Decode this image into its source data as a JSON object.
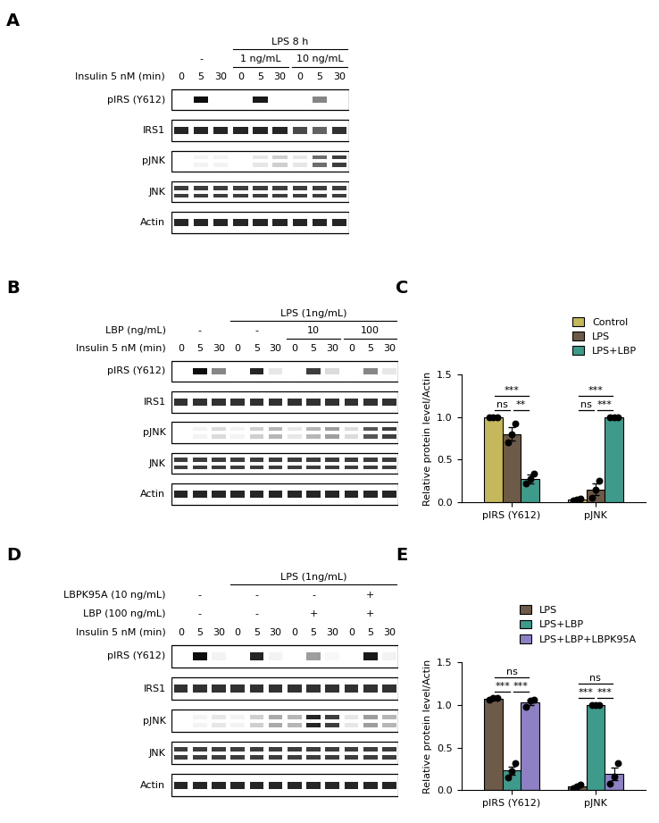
{
  "chart_data": [
    {
      "type": "bar",
      "label": "C",
      "categories": [
        "pIRS (Y612)",
        "pJNK"
      ],
      "y_label": "Relative protein level/Actin",
      "ylim": [
        0.0,
        1.5
      ],
      "yticks": [
        0.0,
        0.5,
        1.0,
        1.5
      ],
      "legend": "upper right",
      "series": [
        {
          "name": "Control",
          "color": "#c4b75c",
          "values": [
            1.0,
            0.03
          ],
          "errors": [
            0.0,
            0.01
          ],
          "points": [
            [
              1.0,
              1.0,
              1.0
            ],
            [
              0.02,
              0.03,
              0.04
            ]
          ]
        },
        {
          "name": "LPS",
          "color": "#6e5a48",
          "values": [
            0.8,
            0.15
          ],
          "errors": [
            0.08,
            0.07
          ],
          "points": [
            [
              0.7,
              0.8,
              0.92
            ],
            [
              0.05,
              0.15,
              0.25
            ]
          ]
        },
        {
          "name": "LPS+LBP",
          "color": "#3e9b8c",
          "values": [
            0.27,
            1.0
          ],
          "errors": [
            0.05,
            0.0
          ],
          "points": [
            [
              0.22,
              0.27,
              0.33
            ],
            [
              1.0,
              1.0,
              1.0
            ]
          ]
        }
      ],
      "significance": [
        {
          "group": 0,
          "pair": [
            0,
            2
          ],
          "label": "***"
        },
        {
          "group": 0,
          "pair": [
            0,
            1
          ],
          "label": "ns"
        },
        {
          "group": 0,
          "pair": [
            1,
            2
          ],
          "label": "**"
        },
        {
          "group": 1,
          "pair": [
            0,
            2
          ],
          "label": "***"
        },
        {
          "group": 1,
          "pair": [
            0,
            1
          ],
          "label": "ns"
        },
        {
          "group": 1,
          "pair": [
            1,
            2
          ],
          "label": "***"
        }
      ]
    },
    {
      "type": "bar",
      "label": "E",
      "categories": [
        "pIRS (Y612)",
        "pJNK"
      ],
      "y_label": "Relative protein level/Actin",
      "ylim": [
        0.0,
        1.5
      ],
      "yticks": [
        0.0,
        0.5,
        1.0,
        1.5
      ],
      "legend": "upper right",
      "series": [
        {
          "name": "LPS",
          "color": "#6e5a48",
          "values": [
            1.07,
            0.04
          ],
          "errors": [
            0.01,
            0.01
          ],
          "points": [
            [
              1.06,
              1.08,
              1.08
            ],
            [
              0.02,
              0.04,
              0.06
            ]
          ]
        },
        {
          "name": "LPS+LBP",
          "color": "#3e9b8c",
          "values": [
            0.23,
            1.0
          ],
          "errors": [
            0.05,
            0.0
          ],
          "points": [
            [
              0.15,
              0.22,
              0.32
            ],
            [
              1.0,
              1.0,
              1.0
            ]
          ]
        },
        {
          "name": "LPS+LBP+LBPK95A",
          "color": "#8f7fc4",
          "values": [
            1.03,
            0.19
          ],
          "errors": [
            0.03,
            0.07
          ],
          "points": [
            [
              0.98,
              1.05,
              1.06
            ],
            [
              0.08,
              0.16,
              0.32
            ]
          ]
        }
      ],
      "significance": [
        {
          "group": 0,
          "pair": [
            0,
            2
          ],
          "label": "ns"
        },
        {
          "group": 0,
          "pair": [
            0,
            1
          ],
          "label": "***"
        },
        {
          "group": 0,
          "pair": [
            1,
            2
          ],
          "label": "***"
        },
        {
          "group": 1,
          "pair": [
            0,
            2
          ],
          "label": "ns"
        },
        {
          "group": 1,
          "pair": [
            0,
            1
          ],
          "label": "***"
        },
        {
          "group": 1,
          "pair": [
            1,
            2
          ],
          "label": "***"
        }
      ]
    }
  ],
  "blots": [
    {
      "label": "A",
      "headers": [
        {
          "groups": [
            {
              "text": "LPS 8 h",
              "lanes": [
                3,
                8
              ]
            }
          ]
        },
        {
          "groups": [
            {
              "text": "-",
              "lanes": [
                0,
                2
              ]
            },
            {
              "text": "1 ng/mL",
              "lanes": [
                3,
                5
              ]
            },
            {
              "text": "10 ng/mL",
              "lanes": [
                6,
                8
              ]
            }
          ]
        }
      ],
      "insulin": {
        "label": "Insulin 5 nM (min)",
        "values": [
          0,
          5,
          30,
          0,
          5,
          30,
          0,
          5,
          30
        ]
      },
      "rows": [
        {
          "name": "pIRS (Y612)",
          "doublet": false,
          "bands": [
            0,
            1.0,
            0,
            0,
            0.95,
            0,
            0,
            0.5,
            0
          ]
        },
        {
          "name": "IRS1",
          "doublet": false,
          "bands": [
            0.9,
            0.9,
            0.9,
            0.9,
            0.9,
            0.9,
            0.75,
            0.65,
            0.85
          ]
        },
        {
          "name": "pJNK",
          "doublet": true,
          "bands": [
            0,
            0.05,
            0.05,
            0,
            0.1,
            0.2,
            0.1,
            0.6,
            0.8
          ]
        },
        {
          "name": "JNK",
          "doublet": true,
          "bands": [
            0.8,
            0.8,
            0.8,
            0.8,
            0.8,
            0.8,
            0.8,
            0.8,
            0.8
          ]
        },
        {
          "name": "Actin",
          "doublet": false,
          "bands": [
            0.9,
            0.9,
            0.9,
            0.9,
            0.9,
            0.9,
            0.9,
            0.9,
            0.9
          ]
        }
      ]
    },
    {
      "label": "B",
      "headers": [
        {
          "groups": [
            {
              "text": "LPS (1ng/mL)",
              "lanes": [
                3,
                11
              ]
            }
          ]
        },
        {
          "label": "LBP (ng/mL)",
          "groups": [
            {
              "text": "-",
              "lanes": [
                0,
                2
              ]
            },
            {
              "text": "-",
              "lanes": [
                3,
                5
              ]
            },
            {
              "text": "10",
              "lanes": [
                6,
                8
              ]
            },
            {
              "text": "100",
              "lanes": [
                9,
                11
              ]
            }
          ]
        }
      ],
      "insulin": {
        "label": "Insulin 5 nM (min)",
        "values": [
          0,
          5,
          30,
          0,
          5,
          30,
          0,
          5,
          30,
          0,
          5,
          30
        ]
      },
      "rows": [
        {
          "name": "pIRS (Y612)",
          "doublet": false,
          "bands": [
            0,
            1.0,
            0.5,
            0,
            0.9,
            0.1,
            0,
            0.8,
            0.15,
            0,
            0.5,
            0.1
          ]
        },
        {
          "name": "IRS1",
          "doublet": false,
          "bands": [
            0.85,
            0.85,
            0.85,
            0.85,
            0.85,
            0.85,
            0.85,
            0.85,
            0.85,
            0.85,
            0.85,
            0.85
          ]
        },
        {
          "name": "pJNK",
          "doublet": true,
          "bands": [
            0,
            0.05,
            0.15,
            0.05,
            0.2,
            0.3,
            0.1,
            0.3,
            0.4,
            0.15,
            0.7,
            0.8
          ]
        },
        {
          "name": "JNK",
          "doublet": true,
          "bands": [
            0.8,
            0.8,
            0.8,
            0.8,
            0.8,
            0.8,
            0.8,
            0.8,
            0.8,
            0.8,
            0.8,
            0.8
          ]
        },
        {
          "name": "Actin",
          "doublet": false,
          "bands": [
            0.9,
            0.9,
            0.9,
            0.9,
            0.9,
            0.9,
            0.9,
            0.9,
            0.9,
            0.9,
            0.9,
            0.9
          ]
        }
      ]
    },
    {
      "label": "D",
      "headers": [
        {
          "groups": [
            {
              "text": "LPS (1ng/mL)",
              "lanes": [
                3,
                11
              ]
            }
          ]
        },
        {
          "label": "LBPK95A (10 ng/mL)",
          "groups": [
            {
              "text": "-",
              "lanes": [
                0,
                2
              ]
            },
            {
              "text": "-",
              "lanes": [
                3,
                5
              ]
            },
            {
              "text": "-",
              "lanes": [
                6,
                8
              ]
            },
            {
              "text": "+",
              "lanes": [
                9,
                11
              ]
            }
          ]
        },
        {
          "label": "LBP (100 ng/mL)",
          "groups": [
            {
              "text": "-",
              "lanes": [
                0,
                2
              ]
            },
            {
              "text": "-",
              "lanes": [
                3,
                5
              ]
            },
            {
              "text": "+",
              "lanes": [
                6,
                8
              ]
            },
            {
              "text": "+",
              "lanes": [
                9,
                11
              ]
            }
          ]
        }
      ],
      "insulin": {
        "label": "Insulin 5 nM (min)",
        "values": [
          0,
          5,
          30,
          0,
          5,
          30,
          0,
          5,
          30,
          0,
          5,
          30
        ]
      },
      "rows": [
        {
          "name": "pIRS (Y612)",
          "doublet": false,
          "bands": [
            0,
            1.0,
            0.05,
            0,
            0.9,
            0.05,
            0,
            0.4,
            0.03,
            0,
            0.95,
            0.05
          ]
        },
        {
          "name": "IRS1",
          "doublet": false,
          "bands": [
            0.85,
            0.85,
            0.85,
            0.85,
            0.85,
            0.85,
            0.85,
            0.85,
            0.85,
            0.85,
            0.85,
            0.85
          ]
        },
        {
          "name": "pJNK",
          "doublet": true,
          "bands": [
            0,
            0.05,
            0.1,
            0.05,
            0.2,
            0.35,
            0.3,
            0.9,
            0.8,
            0.1,
            0.4,
            0.3
          ]
        },
        {
          "name": "JNK",
          "doublet": true,
          "bands": [
            0.8,
            0.8,
            0.8,
            0.8,
            0.8,
            0.8,
            0.8,
            0.8,
            0.8,
            0.8,
            0.8,
            0.8
          ]
        },
        {
          "name": "Actin",
          "doublet": false,
          "bands": [
            0.9,
            0.9,
            0.9,
            0.9,
            0.9,
            0.9,
            0.9,
            0.9,
            0.9,
            0.9,
            0.9,
            0.9
          ]
        }
      ]
    }
  ]
}
